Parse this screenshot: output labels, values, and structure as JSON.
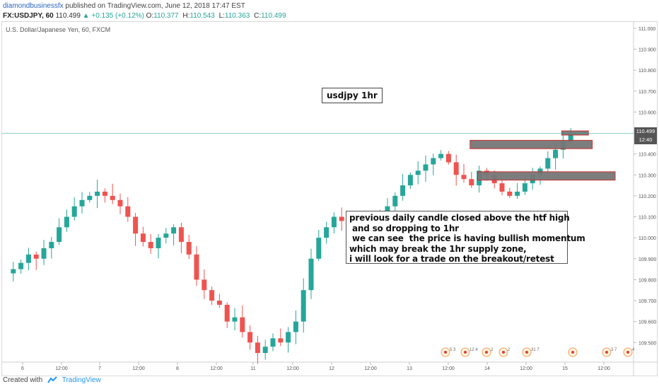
{
  "header": {
    "author": "diamondbusinessfx",
    "published": " published on TradingView.com, June 12, 2018 17:47 EST",
    "symbol": "FX:USDJPY, 60",
    "last": "110.499",
    "change_arrow": "▲",
    "change": "+0.135 (+0.12%)",
    "o_label": "O:",
    "o_value": "110.377",
    "h_label": "H:",
    "h_value": "110.543",
    "l_label": "L:",
    "l_value": "110.363",
    "c_label": "C:",
    "c_value": "110.499"
  },
  "pane_title": "U.S. Dollar/Japanese Yen, 60, FXCM",
  "annotations": {
    "title": "usdjpy 1hr",
    "note": "previous daily candle closed above the htf high\n and so dropping to 1hr\n we can see  the price is having bullish momentum\nwhich may break the 1hr supply zone,\ni will look for a trade on the breakout/retest"
  },
  "badges": {
    "price": "110.499",
    "countdown": "12:40"
  },
  "footer": {
    "created_with": "Created with",
    "brand": "TradingView"
  },
  "colors": {
    "bull": "#26a69a",
    "bear": "#ef5350",
    "zone_fill": "#777777",
    "zone_border": "#c62828",
    "last_line": "#26a69a"
  },
  "chart_data": {
    "type": "candlestick",
    "symbol": "USDJPY",
    "interval": "60",
    "y_ticks": [
      "111.000",
      "110.900",
      "110.800",
      "110.700",
      "110.600",
      "110.500",
      "110.400",
      "110.300",
      "110.200",
      "110.100",
      "110.000",
      "109.900",
      "109.800",
      "109.700",
      "109.600",
      "109.500"
    ],
    "x_ticks": [
      "6",
      "12:00",
      "7",
      "12:00",
      "8",
      "12:00",
      "11",
      "12:00",
      "12",
      "12:00",
      "13",
      "12:00",
      "14",
      "12:00",
      "15",
      "12:00"
    ],
    "ylim": [
      109.43,
      111.03
    ],
    "last_price": 110.499,
    "zones": [
      {
        "low": 110.425,
        "high": 110.465,
        "x_start": 61.0,
        "x_end": 77.0
      },
      {
        "low": 110.275,
        "high": 110.315,
        "x_start": 62.0,
        "x_end": 80.0
      },
      {
        "low": 110.49,
        "high": 110.51,
        "x_start": 73.0,
        "x_end": 76.5
      }
    ],
    "events": [
      "5 3",
      "12 4",
      "2",
      "2",
      "31 7",
      "",
      "3 7",
      "4"
    ]
  }
}
